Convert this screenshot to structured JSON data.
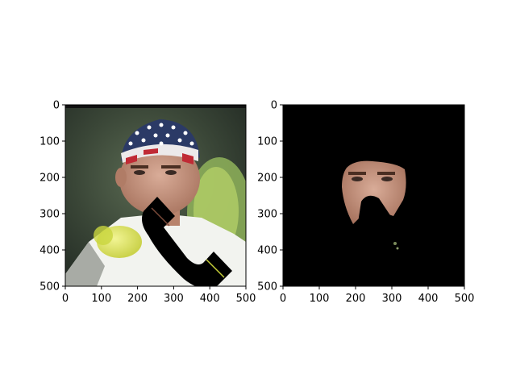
{
  "figure": {
    "panels": [
      {
        "name": "left",
        "content": "photo",
        "x_ticks": [
          "0",
          "100",
          "200",
          "300",
          "400",
          "500"
        ],
        "y_ticks": [
          "0",
          "100",
          "200",
          "300",
          "400",
          "500"
        ]
      },
      {
        "name": "right",
        "content": "masked-face",
        "x_ticks": [
          "0",
          "100",
          "200",
          "300",
          "400",
          "500"
        ],
        "y_ticks": [
          "0",
          "100",
          "200",
          "300",
          "400",
          "500"
        ]
      }
    ]
  },
  "colors": {
    "background": "#ffffff",
    "mask_black": "#000000",
    "skin": "#c79a86",
    "bandana_blue": "#2b3a66",
    "bandana_white": "#ece9ea",
    "bandana_red": "#c02a35",
    "tennis_ball": "#d7e04a",
    "shirt_white": "#f2f3ef",
    "dark_bg": "#2f3a2b"
  },
  "icons": [
    "telephone-handset-icon"
  ]
}
